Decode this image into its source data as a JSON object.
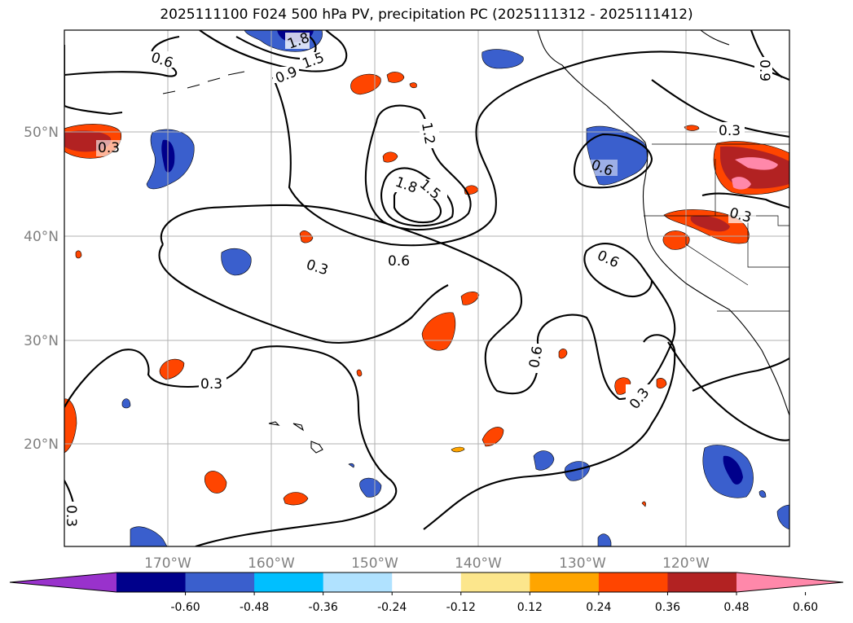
{
  "title": "2025111100 F024 500 hPa PV, precipitation PC (2025111312 - 2025111412)",
  "map": {
    "lat_labels": [
      "50°N",
      "40°N",
      "30°N",
      "20°N"
    ],
    "lon_labels": [
      "170°W",
      "160°W",
      "150°W",
      "140°W",
      "130°W",
      "120°W"
    ]
  },
  "contour_labels": [
    "0.6",
    "1.8",
    "1.5",
    "0.9",
    "1.2",
    "1.8",
    "1.5",
    "0.6",
    "0.3",
    "0.3",
    "0.6",
    "0.3",
    "0.3",
    "0.6",
    "0.3",
    "0.3",
    "0.6",
    "0.9",
    "0.3"
  ],
  "colorbar": {
    "ticks": [
      "-0.60",
      "-0.48",
      "-0.36",
      "-0.24",
      "-0.12",
      "0.12",
      "0.24",
      "0.36",
      "0.48",
      "0.60"
    ],
    "colors": [
      "#9932cc",
      "#00008b",
      "#3a5fcd",
      "#00bfff",
      "#b0e2ff",
      "#ffffff",
      "#fce68c",
      "#ffa500",
      "#ff4500",
      "#b22222",
      "#ff88aa"
    ]
  }
}
